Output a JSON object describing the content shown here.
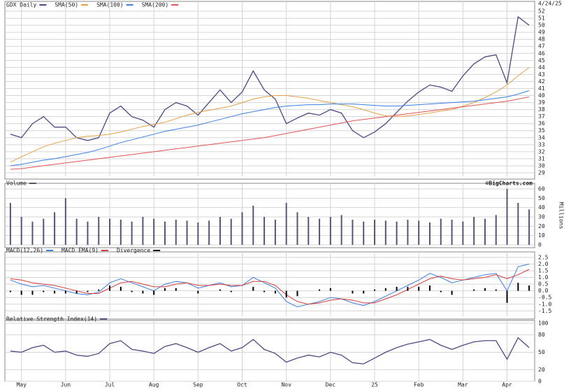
{
  "chart_data": [
    {
      "type": "line",
      "date": "4/24/25",
      "series": [
        {
          "name": "GDX Daily",
          "color": "#4b4b86",
          "values": [
            34.5,
            34,
            36,
            37,
            35.5,
            35.5,
            34,
            33.6,
            34,
            37.5,
            38.5,
            37,
            36.5,
            35.5,
            38,
            39,
            38.5,
            37.2,
            39,
            40.8,
            39,
            40.5,
            43.5,
            40.8,
            39.5,
            36,
            36.8,
            37.5,
            37.2,
            38,
            37.5,
            35,
            34,
            34.8,
            36,
            37.6,
            39.2,
            40.5,
            41.5,
            41.2,
            40.6,
            42.8,
            44.5,
            45.5,
            45.8,
            41.8,
            51.2,
            50
          ]
        },
        {
          "name": "SMA(50)",
          "color": "#e3a048",
          "values": [
            30.5,
            31.3,
            32,
            32.7,
            33.2,
            33.6,
            34,
            34.2,
            34.3,
            34.5,
            34.8,
            35.2,
            35.6,
            35.9,
            36.2,
            36.7,
            37.2,
            37.6,
            37.9,
            38.2,
            38.5,
            39,
            39.5,
            39.8,
            40,
            40,
            39.8,
            39.6,
            39.3,
            39,
            38.7,
            38.4,
            38,
            37.5,
            37.1,
            37,
            37.1,
            37.3,
            37.5,
            37.8,
            38,
            38.5,
            39,
            39.7,
            40.5,
            41.5,
            42.8,
            44
          ]
        },
        {
          "name": "SMA(100)",
          "color": "#3b7fe0",
          "values": [
            30,
            30.2,
            30.5,
            30.8,
            31,
            31.3,
            31.6,
            31.9,
            32.3,
            32.8,
            33.3,
            33.7,
            34.1,
            34.5,
            34.9,
            35.2,
            35.5,
            35.8,
            36.2,
            36.6,
            37,
            37.4,
            37.7,
            38,
            38.3,
            38.5,
            38.6,
            38.7,
            38.7,
            38.8,
            38.8,
            38.8,
            38.7,
            38.6,
            38.5,
            38.5,
            38.6,
            38.7,
            38.8,
            38.9,
            39,
            39.1,
            39.2,
            39.4,
            39.6,
            39.8,
            40.2,
            40.7
          ]
        },
        {
          "name": "SMA(200)",
          "color": "#e05555",
          "values": [
            29.5,
            29.6,
            29.8,
            30,
            30.2,
            30.4,
            30.6,
            30.8,
            31,
            31.2,
            31.4,
            31.6,
            31.8,
            32,
            32.2,
            32.4,
            32.6,
            32.8,
            33,
            33.2,
            33.4,
            33.6,
            33.8,
            34,
            34.3,
            34.6,
            34.9,
            35.2,
            35.5,
            35.8,
            36.1,
            36.4,
            36.6,
            36.8,
            37,
            37.2,
            37.4,
            37.6,
            37.8,
            38,
            38.2,
            38.4,
            38.6,
            38.8,
            39,
            39.2,
            39.5,
            39.8
          ]
        }
      ],
      "ylim": [
        28.5,
        53
      ],
      "yticks": [
        29,
        30,
        31,
        32,
        33,
        34,
        35,
        36,
        37,
        38,
        39,
        40,
        41,
        42,
        43,
        44,
        45,
        46,
        47,
        48,
        49,
        50,
        51,
        52
      ],
      "grid": true
    },
    {
      "type": "bar",
      "credit": "©BigCharts.com",
      "y_label": "Millions",
      "series": [
        {
          "name": "Volume",
          "color": "#55557a",
          "values": [
            45,
            30,
            25,
            28,
            35,
            50,
            28,
            25,
            30,
            28,
            27,
            25,
            30,
            28,
            25,
            27,
            26,
            24,
            26,
            30,
            28,
            35,
            42,
            30,
            27,
            45,
            35,
            30,
            28,
            30,
            32,
            27,
            25,
            27,
            26,
            25,
            27,
            26,
            24,
            28,
            27,
            25,
            30,
            28,
            32,
            60,
            45,
            38
          ]
        }
      ],
      "ylim": [
        0,
        63
      ],
      "yticks": [
        0,
        10,
        20,
        30,
        40,
        50,
        60
      ],
      "grid": true
    },
    {
      "type": "line",
      "series": [
        {
          "name": "MACD(12,26)",
          "color": "#3b7fe0",
          "values": [
            0.8,
            0.5,
            0.3,
            0.4,
            0.2,
            0,
            -0.2,
            -0.3,
            -0.1,
            0.6,
            0.9,
            0.6,
            0.3,
            0,
            0.5,
            0.7,
            0.6,
            0.2,
            0.4,
            0.6,
            0.3,
            0.4,
            1.0,
            0.6,
            0.2,
            -0.8,
            -1.2,
            -1.0,
            -0.8,
            -0.5,
            -0.6,
            -0.9,
            -1.1,
            -0.8,
            -0.4,
            0,
            0.4,
            0.8,
            1.3,
            1.0,
            0.6,
            0.8,
            1.0,
            1.2,
            1.3,
            0,
            1.8,
            2.0
          ]
        },
        {
          "name": "MACD EMA(9)",
          "color": "#d63c3c",
          "values": [
            0.9,
            0.8,
            0.6,
            0.5,
            0.4,
            0.2,
            0,
            -0.2,
            -0.2,
            0.2,
            0.6,
            0.7,
            0.5,
            0.3,
            0.3,
            0.5,
            0.6,
            0.4,
            0.4,
            0.5,
            0.4,
            0.4,
            0.7,
            0.7,
            0.4,
            -0.3,
            -0.8,
            -1.0,
            -0.9,
            -0.7,
            -0.6,
            -0.7,
            -0.9,
            -0.9,
            -0.6,
            -0.3,
            0.1,
            0.5,
            0.9,
            1.1,
            0.9,
            0.8,
            0.9,
            1.0,
            1.2,
            0.9,
            1.2,
            1.6
          ]
        },
        {
          "name": "Divergence",
          "color": "#000000",
          "type": "bar",
          "values": [
            -0.1,
            -0.3,
            -0.3,
            -0.1,
            -0.2,
            -0.2,
            -0.2,
            -0.1,
            0.1,
            0.4,
            0.3,
            -0.1,
            -0.2,
            -0.3,
            0.2,
            0.2,
            0,
            -0.2,
            0,
            0.1,
            -0.1,
            0,
            0.3,
            -0.1,
            -0.2,
            -0.5,
            -0.4,
            0,
            0.1,
            0.2,
            0,
            -0.2,
            -0.2,
            0.1,
            0.2,
            0.3,
            0.3,
            0.3,
            0.4,
            -0.1,
            -0.3,
            0,
            0.1,
            0.2,
            0.1,
            -0.9,
            0.6,
            0.4
          ]
        }
      ],
      "ylim": [
        -1.9,
        2.7
      ],
      "yticks": [
        -1.5,
        {
          "value": -1,
          "label": "-1.0"
        },
        -0.5,
        {
          "value": 0,
          "label": "0.0"
        },
        0.5,
        {
          "value": 1,
          "label": "1.0"
        },
        1.5,
        {
          "value": 2,
          "label": "2.0"
        },
        2.5
      ],
      "grid": true
    },
    {
      "type": "line",
      "categories": [
        null,
        "May",
        null,
        null,
        null,
        "Jun",
        null,
        null,
        null,
        "Jul",
        null,
        null,
        null,
        "Aug",
        null,
        null,
        null,
        "Sep",
        null,
        null,
        null,
        "Oct",
        null,
        null,
        null,
        "Nov",
        null,
        null,
        null,
        "Dec",
        null,
        null,
        null,
        "25",
        null,
        null,
        null,
        "Feb",
        null,
        null,
        null,
        "Mar",
        null,
        null,
        null,
        "Apr",
        null,
        null
      ],
      "series": [
        {
          "name": "Relative Strength Index(14)",
          "color": "#4b4b86",
          "values": [
            52,
            50,
            58,
            62,
            50,
            52,
            45,
            43,
            48,
            65,
            70,
            55,
            52,
            48,
            60,
            65,
            58,
            50,
            58,
            65,
            52,
            58,
            72,
            55,
            48,
            33,
            40,
            45,
            42,
            50,
            45,
            32,
            30,
            40,
            50,
            58,
            64,
            68,
            72,
            62,
            55,
            62,
            68,
            70,
            70,
            38,
            75,
            58
          ]
        }
      ],
      "ylim": [
        0,
        100
      ],
      "yticks": [
        0,
        20,
        50,
        80,
        100
      ],
      "grid": true
    }
  ]
}
